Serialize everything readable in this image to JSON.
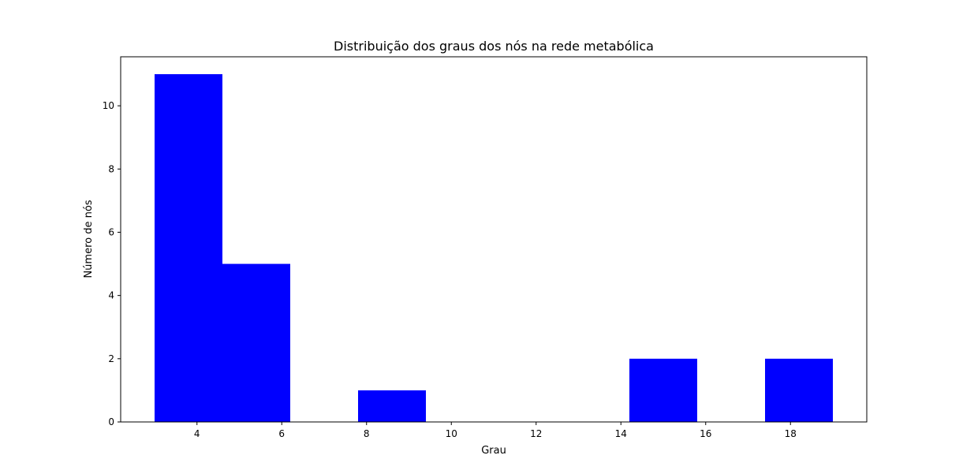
{
  "chart_data": {
    "type": "bar",
    "title": "Distribuição dos graus dos nós na rede metabólica",
    "xlabel": "Grau",
    "ylabel": "Número de nós",
    "bins": [
      {
        "x0": 3.0,
        "x1": 4.6,
        "count": 11
      },
      {
        "x0": 4.6,
        "x1": 6.2,
        "count": 5
      },
      {
        "x0": 6.2,
        "x1": 7.8,
        "count": 0
      },
      {
        "x0": 7.8,
        "x1": 9.4,
        "count": 1
      },
      {
        "x0": 9.4,
        "x1": 11.0,
        "count": 0
      },
      {
        "x0": 11.0,
        "x1": 12.6,
        "count": 0
      },
      {
        "x0": 12.6,
        "x1": 14.2,
        "count": 0
      },
      {
        "x0": 14.2,
        "x1": 15.8,
        "count": 2
      },
      {
        "x0": 15.8,
        "x1": 17.4,
        "count": 0
      },
      {
        "x0": 17.4,
        "x1": 19.0,
        "count": 2
      }
    ],
    "xticks": [
      4,
      6,
      8,
      10,
      12,
      14,
      16,
      18
    ],
    "yticks": [
      0,
      2,
      4,
      6,
      8,
      10
    ],
    "xlim": [
      2.2,
      19.8
    ],
    "ylim": [
      0,
      11.55
    ],
    "bar_color": "#0000ff",
    "grid": false
  }
}
